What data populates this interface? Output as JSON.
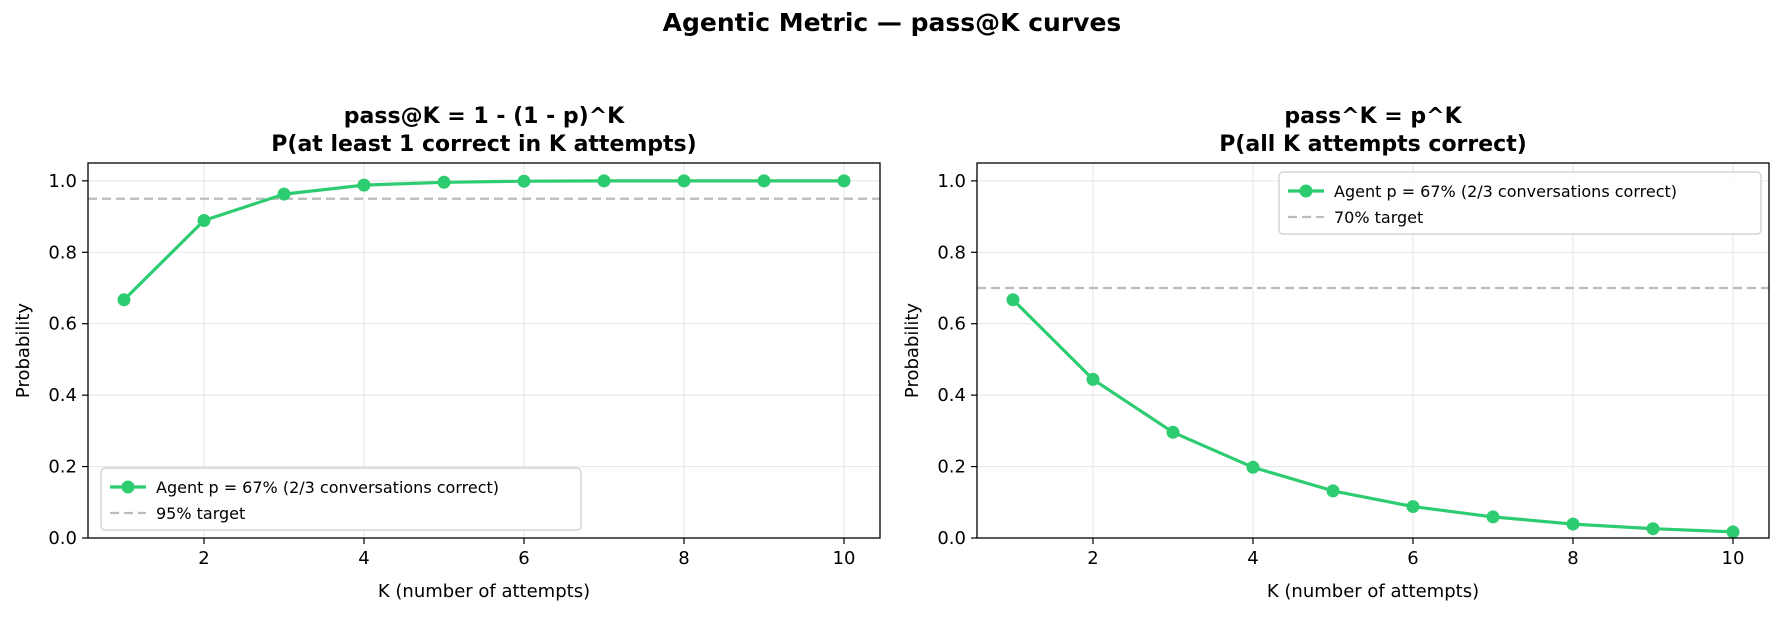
{
  "suptitle": "Agentic Metric — pass@K curves",
  "colors": {
    "series": "#2ecc71",
    "target": "#bbbbbb",
    "grid": "#e5e5e5"
  },
  "chart_data": [
    {
      "type": "line",
      "title_line1": "pass@K  =  1 - (1 - p)^K",
      "title_line2": "P(at least 1 correct in K attempts)",
      "xlabel": "K (number of attempts)",
      "ylabel": "Probability",
      "xlim": [
        0.55,
        10.45
      ],
      "ylim": [
        0,
        1.05
      ],
      "xticks": [
        2,
        4,
        6,
        8,
        10
      ],
      "yticks": [
        "0.0",
        "0.2",
        "0.4",
        "0.6",
        "0.8",
        "1.0"
      ],
      "grid": true,
      "legend_position": "lower-left",
      "series": [
        {
          "name": "Agent  p = 67%  (2/3 conversations correct)",
          "x": [
            1,
            2,
            3,
            4,
            5,
            6,
            7,
            8,
            9,
            10
          ],
          "y": [
            0.667,
            0.889,
            0.963,
            0.988,
            0.996,
            0.999,
            1.0,
            1.0,
            1.0,
            1.0
          ]
        }
      ],
      "target": {
        "name": "95% target",
        "y": 0.95
      }
    },
    {
      "type": "line",
      "title_line1": "pass^K  =  p^K",
      "title_line2": "P(all K attempts correct)",
      "xlabel": "K (number of attempts)",
      "ylabel": "Probability",
      "xlim": [
        0.55,
        10.45
      ],
      "ylim": [
        0,
        1.05
      ],
      "xticks": [
        2,
        4,
        6,
        8,
        10
      ],
      "yticks": [
        "0.0",
        "0.2",
        "0.4",
        "0.6",
        "0.8",
        "1.0"
      ],
      "grid": true,
      "legend_position": "upper-right",
      "series": [
        {
          "name": "Agent  p = 67%  (2/3 conversations correct)",
          "x": [
            1,
            2,
            3,
            4,
            5,
            6,
            7,
            8,
            9,
            10
          ],
          "y": [
            0.667,
            0.444,
            0.296,
            0.198,
            0.132,
            0.088,
            0.059,
            0.039,
            0.026,
            0.017
          ]
        }
      ],
      "target": {
        "name": "70% target",
        "y": 0.7
      }
    }
  ]
}
